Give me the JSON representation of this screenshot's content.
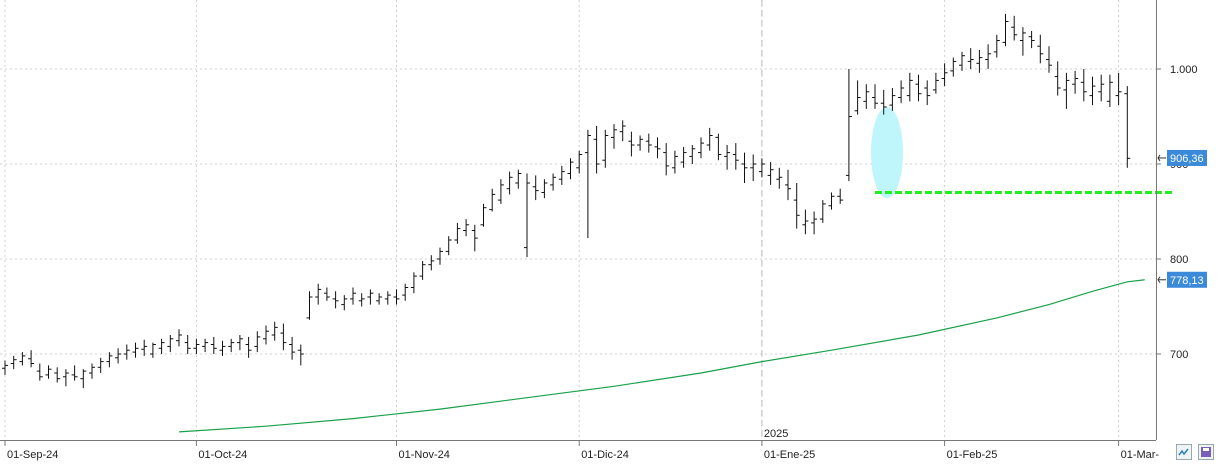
{
  "chart_data": {
    "type": "ohlc",
    "title": "",
    "xlabel": "",
    "ylabel": "",
    "ylim": [
      618,
      1070
    ],
    "y_ticks": [
      {
        "value": 1000,
        "label": "1.000"
      },
      {
        "value": 900,
        "label": "900"
      },
      {
        "value": 800,
        "label": "800"
      },
      {
        "value": 700,
        "label": "700"
      }
    ],
    "x_ticks": [
      {
        "label": "01-Sep-24",
        "index": 0
      },
      {
        "label": "01-Oct-24",
        "index": 22
      },
      {
        "label": "01-Nov-24",
        "index": 45
      },
      {
        "label": "01-Dic-24",
        "index": 66
      },
      {
        "label": "01-Ene-25",
        "index": 87
      },
      {
        "label": "01-Feb-25",
        "index": 108
      },
      {
        "label": "01-Mar-",
        "index": 128
      }
    ],
    "year_separator": {
      "label": "2025",
      "index": 87
    },
    "grid": true,
    "price_tags": [
      {
        "label": "906,36",
        "value": 906.36,
        "color": "#3b8ad9"
      },
      {
        "label": "778,13",
        "value": 778.13,
        "color": "#3b8ad9"
      }
    ],
    "bars": [
      [
        685,
        693,
        678,
        688
      ],
      [
        690,
        698,
        684,
        694
      ],
      [
        692,
        702,
        688,
        698
      ],
      [
        695,
        704,
        686,
        690
      ],
      [
        682,
        690,
        672,
        676
      ],
      [
        678,
        688,
        674,
        684
      ],
      [
        680,
        686,
        670,
        674
      ],
      [
        676,
        684,
        666,
        680
      ],
      [
        678,
        688,
        672,
        676
      ],
      [
        674,
        684,
        664,
        682
      ],
      [
        680,
        690,
        674,
        686
      ],
      [
        686,
        696,
        680,
        692
      ],
      [
        692,
        702,
        686,
        698
      ],
      [
        696,
        706,
        690,
        700
      ],
      [
        700,
        710,
        694,
        704
      ],
      [
        702,
        712,
        696,
        706
      ],
      [
        705,
        715,
        698,
        708
      ],
      [
        700,
        712,
        696,
        710
      ],
      [
        706,
        716,
        700,
        712
      ],
      [
        708,
        720,
        702,
        716
      ],
      [
        714,
        726,
        708,
        720
      ],
      [
        712,
        720,
        700,
        706
      ],
      [
        706,
        716,
        700,
        710
      ],
      [
        708,
        716,
        702,
        712
      ],
      [
        710,
        718,
        700,
        706
      ],
      [
        704,
        714,
        698,
        708
      ],
      [
        708,
        716,
        702,
        712
      ],
      [
        712,
        720,
        704,
        716
      ],
      [
        710,
        718,
        696,
        704
      ],
      [
        708,
        724,
        702,
        718
      ],
      [
        716,
        730,
        710,
        724
      ],
      [
        720,
        734,
        714,
        728
      ],
      [
        722,
        732,
        704,
        712
      ],
      [
        710,
        718,
        694,
        702
      ],
      [
        704,
        710,
        688,
        700
      ],
      [
        738,
        766,
        736,
        760
      ],
      [
        760,
        774,
        752,
        768
      ],
      [
        764,
        770,
        756,
        760
      ],
      [
        758,
        766,
        748,
        756
      ],
      [
        752,
        762,
        746,
        758
      ],
      [
        758,
        770,
        752,
        764
      ],
      [
        756,
        764,
        750,
        758
      ],
      [
        760,
        768,
        752,
        764
      ],
      [
        756,
        764,
        752,
        760
      ],
      [
        758,
        766,
        752,
        762
      ],
      [
        760,
        768,
        752,
        758
      ],
      [
        762,
        774,
        756,
        770
      ],
      [
        770,
        786,
        764,
        782
      ],
      [
        782,
        798,
        778,
        794
      ],
      [
        794,
        804,
        788,
        798
      ],
      [
        800,
        812,
        794,
        808
      ],
      [
        808,
        824,
        804,
        820
      ],
      [
        820,
        838,
        816,
        832
      ],
      [
        830,
        842,
        824,
        836
      ],
      [
        830,
        836,
        808,
        822
      ],
      [
        836,
        858,
        834,
        854
      ],
      [
        852,
        874,
        850,
        868
      ],
      [
        862,
        884,
        858,
        878
      ],
      [
        874,
        892,
        868,
        886
      ],
      [
        880,
        894,
        874,
        890
      ],
      [
        812,
        890,
        802,
        880
      ],
      [
        876,
        888,
        862,
        872
      ],
      [
        870,
        884,
        864,
        880
      ],
      [
        878,
        890,
        872,
        886
      ],
      [
        884,
        898,
        878,
        892
      ],
      [
        890,
        906,
        884,
        902
      ],
      [
        896,
        914,
        890,
        910
      ],
      [
        912,
        936,
        822,
        930
      ],
      [
        926,
        940,
        890,
        900
      ],
      [
        904,
        936,
        896,
        930
      ],
      [
        928,
        942,
        916,
        936
      ],
      [
        934,
        946,
        924,
        940
      ],
      [
        924,
        934,
        908,
        920
      ],
      [
        920,
        930,
        914,
        926
      ],
      [
        924,
        932,
        912,
        920
      ],
      [
        918,
        928,
        906,
        916
      ],
      [
        912,
        922,
        888,
        898
      ],
      [
        896,
        914,
        890,
        908
      ],
      [
        902,
        918,
        896,
        912
      ],
      [
        908,
        920,
        900,
        916
      ],
      [
        912,
        928,
        906,
        922
      ],
      [
        920,
        938,
        914,
        930
      ],
      [
        928,
        932,
        904,
        910
      ],
      [
        908,
        920,
        894,
        912
      ],
      [
        910,
        922,
        894,
        904
      ],
      [
        900,
        912,
        880,
        896
      ],
      [
        896,
        910,
        882,
        900
      ],
      [
        892,
        906,
        886,
        900
      ],
      [
        888,
        902,
        878,
        894
      ],
      [
        884,
        896,
        874,
        886
      ],
      [
        878,
        894,
        862,
        874
      ],
      [
        862,
        880,
        832,
        846
      ],
      [
        836,
        852,
        826,
        840
      ],
      [
        838,
        850,
        826,
        842
      ],
      [
        842,
        862,
        838,
        858
      ],
      [
        856,
        870,
        852,
        866
      ],
      [
        866,
        874,
        858,
        862
      ],
      [
        888,
        1000,
        882,
        950
      ],
      [
        956,
        988,
        952,
        970
      ],
      [
        966,
        984,
        958,
        976
      ],
      [
        970,
        984,
        958,
        964
      ],
      [
        964,
        978,
        952,
        960
      ],
      [
        962,
        980,
        956,
        972
      ],
      [
        970,
        988,
        964,
        980
      ],
      [
        972,
        996,
        966,
        988
      ],
      [
        984,
        994,
        966,
        974
      ],
      [
        980,
        988,
        962,
        972
      ],
      [
        978,
        996,
        974,
        988
      ],
      [
        990,
        1006,
        982,
        996
      ],
      [
        998,
        1012,
        992,
        1008
      ],
      [
        1004,
        1018,
        998,
        1014
      ],
      [
        1008,
        1022,
        1000,
        1010
      ],
      [
        1006,
        1020,
        996,
        1012
      ],
      [
        1010,
        1026,
        1000,
        1016
      ],
      [
        1018,
        1036,
        1012,
        1030
      ],
      [
        1028,
        1058,
        1024,
        1050
      ],
      [
        1044,
        1056,
        1030,
        1036
      ],
      [
        1030,
        1044,
        1014,
        1038
      ],
      [
        1034,
        1040,
        1022,
        1030
      ],
      [
        1024,
        1036,
        1006,
        1016
      ],
      [
        1010,
        1024,
        996,
        1004
      ],
      [
        992,
        1008,
        972,
        980
      ],
      [
        978,
        996,
        958,
        988
      ],
      [
        984,
        998,
        974,
        990
      ],
      [
        986,
        1000,
        966,
        976
      ],
      [
        972,
        992,
        962,
        982
      ],
      [
        976,
        994,
        966,
        984
      ],
      [
        966,
        994,
        960,
        986
      ],
      [
        972,
        996,
        962,
        976
      ],
      [
        974,
        982,
        896,
        906
      ]
    ],
    "series": [
      {
        "type": "line",
        "color": "#1aa04a",
        "start_index": 20,
        "values": [
          [
            20,
            618
          ],
          [
            30,
            624
          ],
          [
            40,
            632
          ],
          [
            50,
            642
          ],
          [
            60,
            654
          ],
          [
            70,
            666
          ],
          [
            80,
            680
          ],
          [
            87,
            692
          ],
          [
            95,
            704
          ],
          [
            105,
            720
          ],
          [
            114,
            738
          ],
          [
            120,
            752
          ],
          [
            125,
            766
          ],
          [
            129,
            776
          ],
          [
            131,
            778.13
          ]
        ]
      },
      {
        "type": "level",
        "color": "#22ee22",
        "style": "dashed",
        "from_index": 100,
        "to_index": 134,
        "value": 870
      }
    ],
    "highlight": {
      "index": 100,
      "value_center": 912,
      "value_half_height": 48,
      "color": "#bff6fb"
    }
  }
}
